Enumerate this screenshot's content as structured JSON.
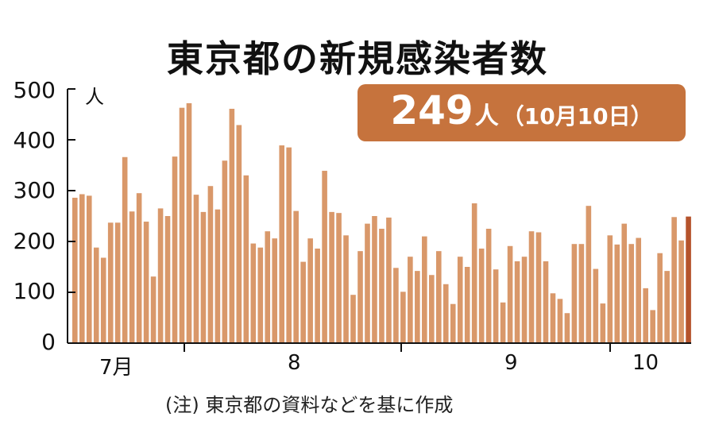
{
  "chart_data": {
    "type": "bar",
    "title": "東京都の新規感染者数",
    "ylabel": "人",
    "ylim": [
      0,
      500
    ],
    "yticks": [
      "500",
      "400",
      "300",
      "200",
      "100",
      "0"
    ],
    "xlabels": [
      "7月",
      "8",
      "9",
      "10"
    ],
    "highlight": {
      "value": "249",
      "unit": "人",
      "date": "（10月10日）"
    },
    "values": [
      286,
      293,
      290,
      188,
      168,
      237,
      237,
      366,
      259,
      295,
      239,
      131,
      265,
      250,
      367,
      463,
      472,
      292,
      258,
      309,
      263,
      359,
      461,
      429,
      330,
      196,
      188,
      220,
      206,
      389,
      385,
      260,
      160,
      206,
      186,
      339,
      258,
      256,
      212,
      95,
      181,
      235,
      250,
      225,
      247,
      148,
      101,
      170,
      142,
      210,
      134,
      181,
      116,
      77,
      170,
      150,
      275,
      186,
      225,
      145,
      80,
      191,
      161,
      170,
      220,
      218,
      161,
      98,
      87,
      59,
      195,
      195,
      270,
      146,
      78,
      212,
      194,
      235,
      195,
      207,
      108,
      65,
      177,
      142,
      248,
      202,
      249
    ],
    "highlight_color": "#b5532c",
    "bar_color": "#d9986a",
    "note": "(注) 東京都の資料などを基に作成"
  }
}
